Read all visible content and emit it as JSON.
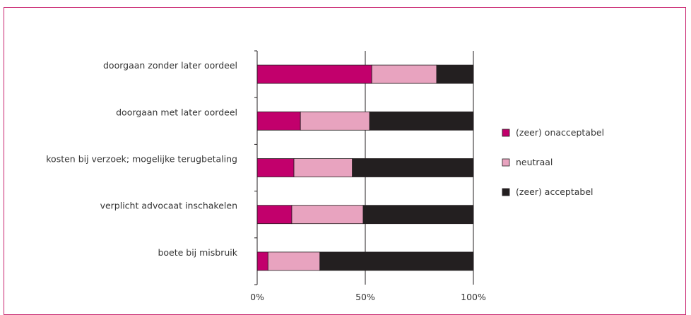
{
  "chart_data": {
    "type": "bar",
    "orientation": "horizontal",
    "stacked": true,
    "percent": true,
    "categories": [
      "doorgaan zonder later oordeel",
      "doorgaan met later oordeel",
      "kosten bij verzoek; mogelijke terugbetaling",
      "verplicht advocaat inschakelen",
      "boete bij misbruik"
    ],
    "series": [
      {
        "name": "(zeer) onacceptabel",
        "color": "#c2006c",
        "values": [
          53,
          20,
          17,
          16,
          5
        ]
      },
      {
        "name": "neutraal",
        "color": "#e8a3bf",
        "values": [
          30,
          32,
          27,
          33,
          24
        ]
      },
      {
        "name": "(zeer) acceptabel",
        "color": "#231f20",
        "values": [
          17,
          48,
          56,
          51,
          71
        ]
      }
    ],
    "xticks": [
      "0%",
      "50%",
      "100%"
    ],
    "xlim": [
      0,
      100
    ],
    "grid": "vertical line at 50%",
    "legend_position": "right"
  }
}
